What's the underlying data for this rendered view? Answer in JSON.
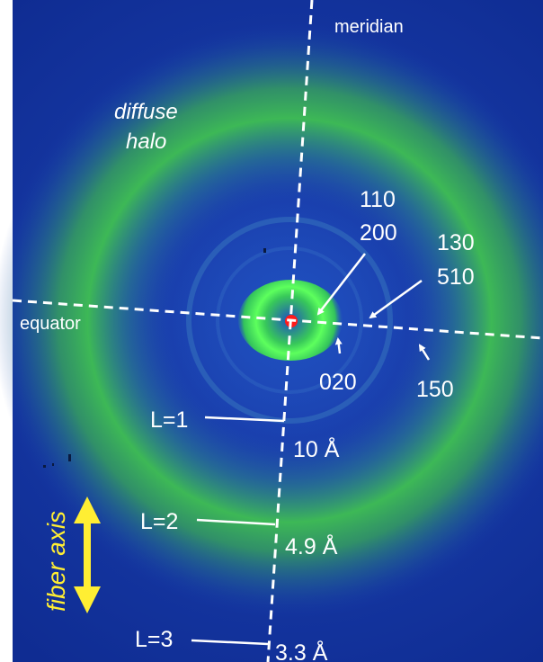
{
  "axes": {
    "meridian": "meridian",
    "equator": "equator",
    "fiber_axis": "fiber axis"
  },
  "halo": {
    "line1": "diffuse",
    "line2": "halo"
  },
  "reflections": {
    "r110": "110",
    "r200": "200",
    "r130": "130",
    "r510": "510",
    "r020": "020",
    "r150": "150"
  },
  "layer_lines": [
    {
      "label": "L=1",
      "spacing": "10 Å"
    },
    {
      "label": "L=2",
      "spacing": "4.9 Å"
    },
    {
      "label": "L=3",
      "spacing": "3.3 Å"
    }
  ],
  "colors": {
    "background": "#163aa8",
    "halo": "#3fc04a",
    "inner_ring": "#4fff4f",
    "beam_stop": "#ff1a1a",
    "labels": "#ffffff",
    "fiber_axis": "#ffee33"
  }
}
